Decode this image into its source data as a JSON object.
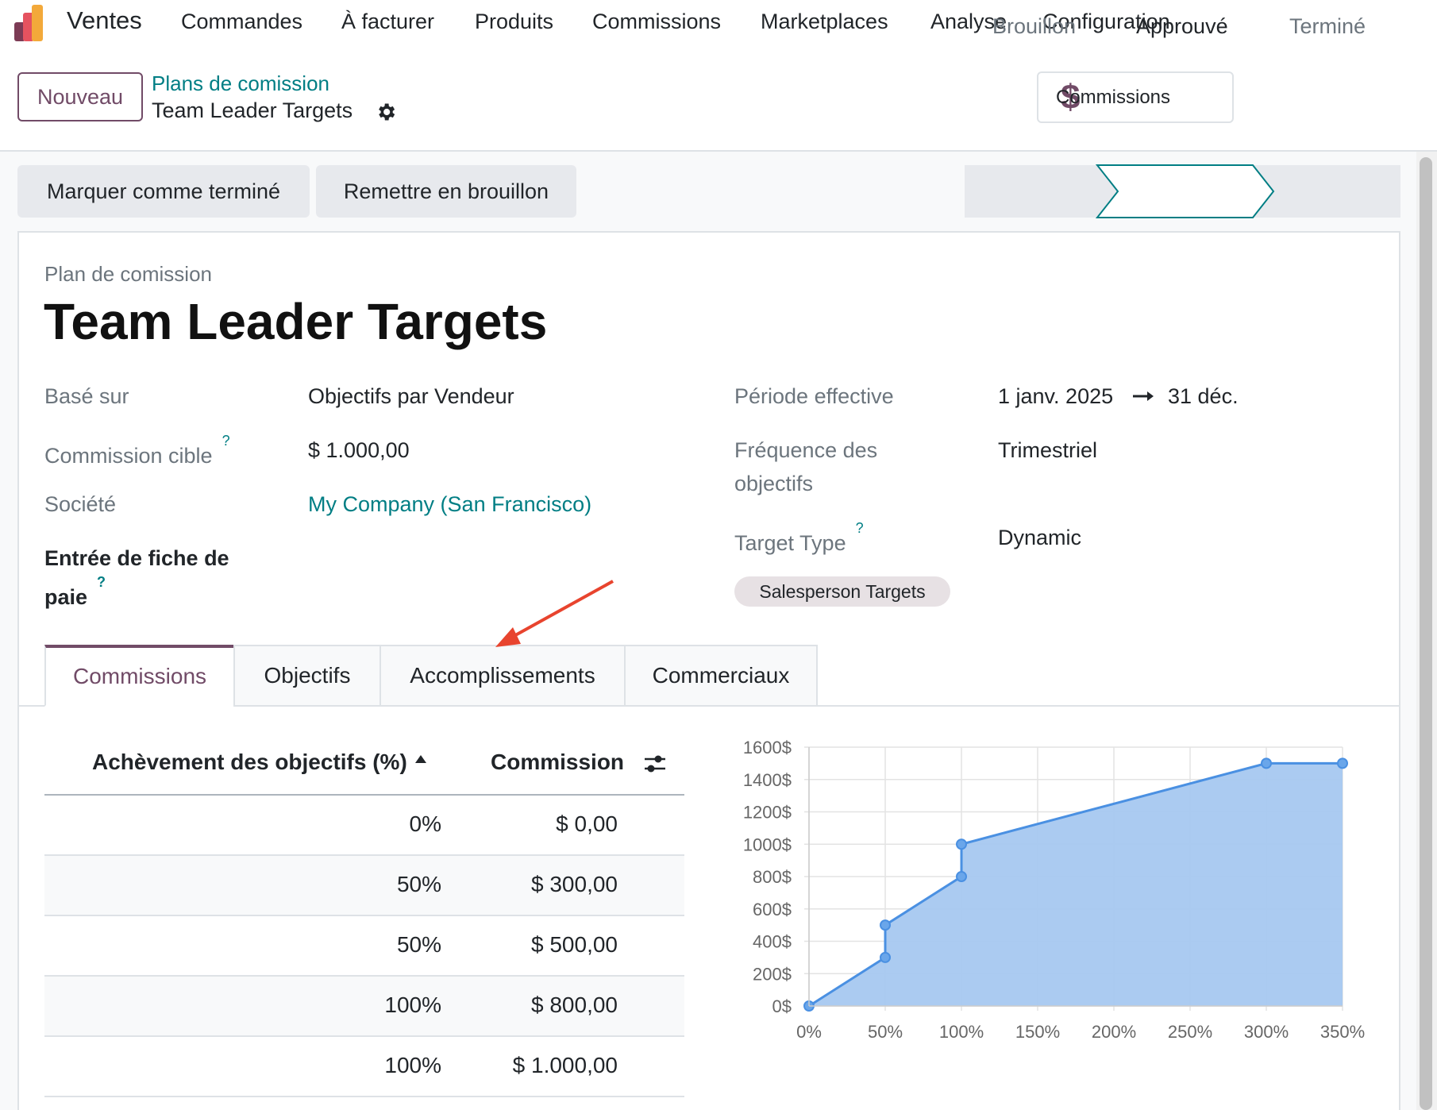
{
  "nav": {
    "app_name": "Ventes",
    "menu": [
      "Commandes",
      "À facturer",
      "Produits",
      "Commissions",
      "Marketplaces",
      "Analyse",
      "Configuration"
    ],
    "icon": "odoo-sales-app-icon"
  },
  "control": {
    "new_button": "Nouveau",
    "breadcrumb_parent": "Plans de comission",
    "breadcrumb_current": "Team Leader Targets",
    "smart_button": {
      "icon": "dollar-icon",
      "label": "Commissions"
    }
  },
  "actions": {
    "mark_done": "Marquer comme terminé",
    "reset_draft": "Remettre en brouillon"
  },
  "status": {
    "steps": [
      "Brouillon",
      "Approuvé",
      "Terminé"
    ],
    "current": "Approuvé"
  },
  "form": {
    "label": "Plan de comission",
    "title": "Team Leader Targets",
    "fields_left": [
      {
        "label": "Basé sur",
        "value": "Objectifs par Vendeur"
      },
      {
        "label": "Commission cible",
        "help": "?",
        "value": "$ 1.000,00"
      },
      {
        "label": "Société",
        "value": "My Company (San Francisco)"
      },
      {
        "label_line1": "Entrée de fiche de",
        "label_line2": "paie",
        "help": "?",
        "value": ""
      }
    ],
    "fields_right": [
      {
        "label": "Période effective",
        "value_start": "1 janv. 2025",
        "value_end": "31 déc."
      },
      {
        "label_line1": "Fréquence des",
        "label_line2": "objectifs",
        "value": "Trimestriel"
      },
      {
        "label": "Target Type",
        "help": "?",
        "value": "Dynamic"
      }
    ],
    "tag": "Salesperson Targets"
  },
  "tabs": [
    "Commissions",
    "Objectifs",
    "Accomplissements",
    "Commerciaux"
  ],
  "active_tab": "Commissions",
  "table": {
    "headers": [
      "Achèvement des objectifs (%)",
      "Commission"
    ],
    "rows": [
      {
        "pct": "0%",
        "commission": "$ 0,00"
      },
      {
        "pct": "50%",
        "commission": "$ 300,00"
      },
      {
        "pct": "50%",
        "commission": "$ 500,00"
      },
      {
        "pct": "100%",
        "commission": "$ 800,00"
      },
      {
        "pct": "100%",
        "commission": "$ 1.000,00"
      }
    ]
  },
  "colors": {
    "brand": "#714b67",
    "link": "#017e84",
    "chart_line": "#4a90e2",
    "chart_fill": "#a7c8f0",
    "annotation_arrow": "#e8442e"
  },
  "chart_data": {
    "type": "area",
    "x": [
      0,
      50,
      50,
      100,
      100,
      300,
      350
    ],
    "y": [
      0,
      300,
      500,
      800,
      1000,
      1500,
      1500
    ],
    "xlim": [
      0,
      350
    ],
    "ylim": [
      0,
      1600
    ],
    "xticks": [
      "0%",
      "50%",
      "100%",
      "150%",
      "200%",
      "250%",
      "300%",
      "350%"
    ],
    "yticks": [
      "0$",
      "200$",
      "400$",
      "600$",
      "800$",
      "1000$",
      "1200$",
      "1400$",
      "1600$"
    ],
    "grid": true
  }
}
